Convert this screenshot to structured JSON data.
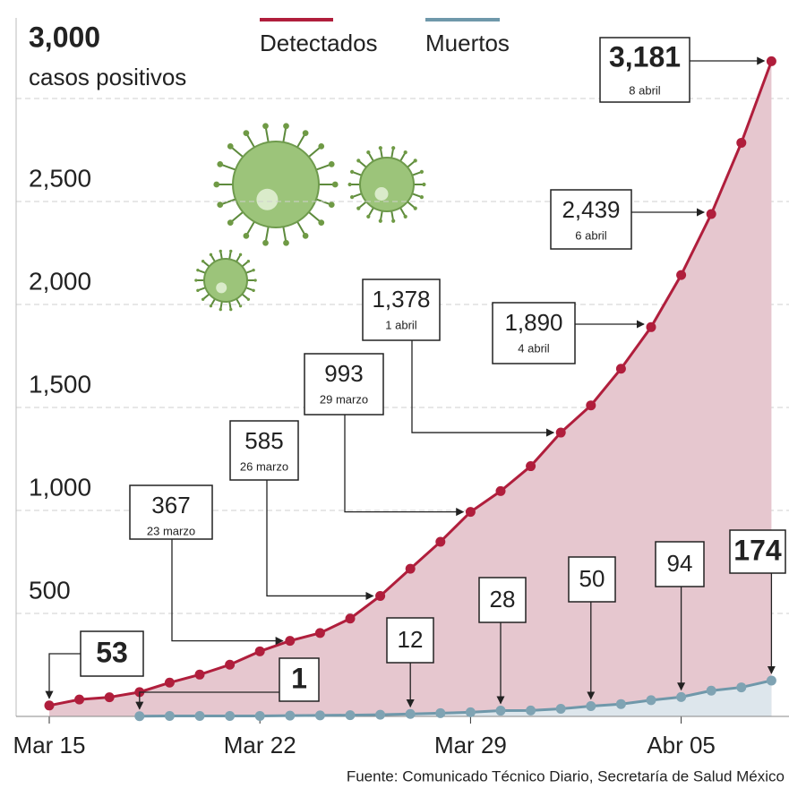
{
  "chart_data": {
    "type": "line",
    "ylabel": "casos positivos",
    "categories": [
      "Mar 15",
      null,
      null,
      null,
      null,
      null,
      null,
      "Mar 22",
      null,
      null,
      null,
      null,
      null,
      null,
      "Mar 29",
      null,
      null,
      null,
      null,
      null,
      null,
      "Abr 05",
      null,
      null,
      null
    ],
    "series": [
      {
        "name": "Detectados",
        "color": "#b01e3c",
        "fill": "#e6c7cf",
        "values": [
          53,
          82,
          93,
          118,
          164,
          203,
          251,
          316,
          367,
          405,
          475,
          585,
          717,
          848,
          993,
          1094,
          1215,
          1378,
          1510,
          1688,
          1890,
          2143,
          2439,
          2785,
          3181
        ],
        "value_labels": [
          "53",
          null,
          null,
          null,
          null,
          null,
          null,
          null,
          "367",
          null,
          null,
          "585",
          null,
          null,
          "993",
          null,
          null,
          "1,378",
          null,
          null,
          "1,890",
          null,
          "2,439",
          null,
          "3,181"
        ],
        "label_dates": [
          null,
          null,
          null,
          null,
          null,
          null,
          null,
          null,
          "23 marzo",
          null,
          null,
          "26 marzo",
          null,
          null,
          "29 marzo",
          null,
          null,
          "1 abril",
          null,
          null,
          "4 abril",
          null,
          "6 abril",
          null,
          "8 abril"
        ]
      },
      {
        "name": "Muertos",
        "color": "#6f98aa",
        "fill": "#dde6ec",
        "values": [
          null,
          null,
          null,
          1,
          2,
          2,
          2,
          2,
          4,
          5,
          6,
          8,
          12,
          16,
          20,
          28,
          29,
          37,
          50,
          60,
          79,
          94,
          125,
          141,
          174
        ],
        "value_labels": [
          null,
          null,
          null,
          "1",
          null,
          null,
          null,
          null,
          null,
          null,
          null,
          null,
          "12",
          null,
          null,
          "28",
          null,
          null,
          "50",
          null,
          null,
          "94",
          null,
          null,
          "174"
        ]
      }
    ],
    "ylim": [
      0,
      3400
    ],
    "yticks": [
      500,
      {
        "value": 1000,
        "label": "1,000"
      },
      {
        "value": 1500,
        "label": "1,500"
      },
      {
        "value": 2000,
        "label": "2,000"
      },
      {
        "value": 2500,
        "label": "2,500"
      },
      {
        "value": 3000,
        "label": "3,000"
      }
    ],
    "grid": true,
    "source": "Fuente: Comunicado Técnico Diario, Secretaría de Salud México"
  }
}
